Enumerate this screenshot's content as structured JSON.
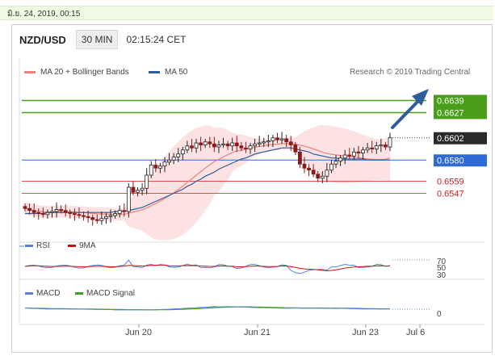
{
  "timestamp": "มิ.ย. 24, 2019, 00:15",
  "header": {
    "pair": "NZD/USD",
    "timeframe": "30 MIN",
    "clock": "02:15:24 CET"
  },
  "legend": {
    "ma20": "MA 20 + Bollinger Bands",
    "ma50": "MA 50"
  },
  "credit": "Research © 2019 Trading Central",
  "colors": {
    "up": "#222222",
    "down": "#8b1a1a",
    "ma20": "#f08080",
    "ma50": "#2f5d9a",
    "band": "#fbd8d8",
    "resistance": "#4a9e1a",
    "support": "#2f6ad6",
    "level": "#e05050",
    "rsi": "#5b7fd8",
    "rsi9": "#d01010",
    "macd": "#5b7fd8",
    "signal": "#3aa020",
    "arrow": "#2f5d9a"
  },
  "chart_data": [
    {
      "type": "candlestick",
      "x_ticks": [
        "Jun 20",
        "Jun 21",
        "Jun 23",
        "Jul 6"
      ],
      "y_ticks": [
        "0.6639",
        "0.6627",
        "0.6602",
        "0.6580",
        "0.6559",
        "0.6547"
      ],
      "ylim": [
        0.6505,
        0.6665
      ],
      "current_price": 0.6602,
      "levels": [
        {
          "label": "0.6639",
          "value": 0.6639,
          "kind": "resistance"
        },
        {
          "label": "0.6627",
          "value": 0.6627,
          "kind": "resistance"
        },
        {
          "label": "0.6580",
          "value": 0.658,
          "kind": "pivot"
        },
        {
          "label": "0.6559",
          "value": 0.6559,
          "kind": "support"
        },
        {
          "label": "0.6547",
          "value": 0.6547,
          "kind": "support"
        }
      ],
      "close": [
        0.6532,
        0.653,
        0.6528,
        0.6527,
        0.6526,
        0.6528,
        0.6529,
        0.6531,
        0.653,
        0.6528,
        0.6527,
        0.6526,
        0.6525,
        0.6524,
        0.6523,
        0.6521,
        0.652,
        0.6522,
        0.6524,
        0.6525,
        0.6527,
        0.653,
        0.6529,
        0.6553,
        0.6548,
        0.655,
        0.6552,
        0.6565,
        0.6575,
        0.6572,
        0.6574,
        0.6578,
        0.658,
        0.6583,
        0.6586,
        0.659,
        0.6594,
        0.6592,
        0.6597,
        0.6595,
        0.6598,
        0.6596,
        0.6593,
        0.6595,
        0.6596,
        0.6594,
        0.6597,
        0.6594,
        0.6592,
        0.6591,
        0.6594,
        0.6596,
        0.6597,
        0.6598,
        0.6599,
        0.6602,
        0.66,
        0.6601,
        0.6598,
        0.6595,
        0.6588,
        0.6576,
        0.6572,
        0.657,
        0.6566,
        0.6562,
        0.6564,
        0.657,
        0.6576,
        0.6579,
        0.6582,
        0.6585,
        0.6584,
        0.6588,
        0.6587,
        0.659,
        0.6592,
        0.6591,
        0.6594,
        0.6595,
        0.6593,
        0.6602
      ],
      "ma50": [
        0.6527,
        0.6527,
        0.6527,
        0.6527,
        0.6527,
        0.6528,
        0.6528,
        0.6528,
        0.6528,
        0.6528,
        0.6528,
        0.6528,
        0.6528,
        0.6528,
        0.6528,
        0.6528,
        0.6528,
        0.6528,
        0.6528,
        0.6528,
        0.6529,
        0.6529,
        0.6529,
        0.653,
        0.6531,
        0.6532,
        0.6533,
        0.6535,
        0.6537,
        0.6539,
        0.6541,
        0.6543,
        0.6545,
        0.6547,
        0.6549,
        0.6551,
        0.6554,
        0.6556,
        0.6559,
        0.6561,
        0.6564,
        0.6566,
        0.6568,
        0.6571,
        0.6573,
        0.6575,
        0.6577,
        0.6579,
        0.6581,
        0.6582,
        0.6584,
        0.6586,
        0.6587,
        0.6588,
        0.6589,
        0.659,
        0.6591,
        0.6592,
        0.6592,
        0.6592,
        0.6591,
        0.659,
        0.6589,
        0.6588,
        0.6586,
        0.6585,
        0.6584,
        0.6583,
        0.6582,
        0.6582,
        0.6581,
        0.6581,
        0.6581,
        0.6581,
        0.6581,
        0.6581,
        0.658,
        0.658,
        0.658,
        0.658,
        0.658,
        0.658
      ]
    },
    {
      "type": "line",
      "name": "RSI",
      "series": [
        {
          "name": "RSI"
        },
        {
          "name": "9MA"
        }
      ],
      "y_ticks": [
        "70",
        "50",
        "30"
      ],
      "ylim": [
        20,
        80
      ]
    },
    {
      "type": "line",
      "name": "MACD",
      "series": [
        {
          "name": "MACD"
        },
        {
          "name": "MACD Signal"
        }
      ],
      "y_ticks": [
        "0"
      ]
    }
  ]
}
